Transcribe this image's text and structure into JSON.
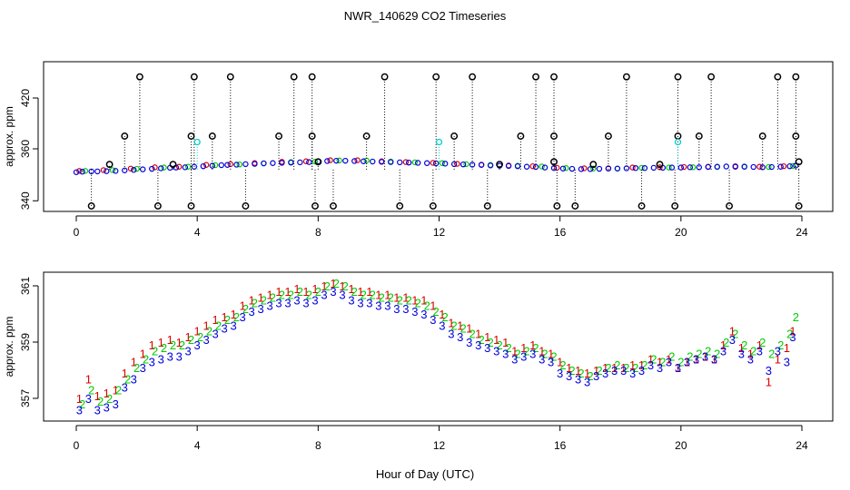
{
  "title": "NWR_140629  CO2 Timeseries",
  "xlabel": "Hour of Day (UTC)",
  "colors": {
    "series_1": "#dd0000",
    "series_2": "#00cc00",
    "series_3": "#0000dd",
    "cyan": "#00cccc",
    "black": "#000000"
  },
  "chart_data": [
    {
      "type": "scatter",
      "title": "NWR_140629  CO2 Timeseries",
      "xlabel": "",
      "ylabel": "approx. ppm",
      "xlim": [
        -1.8,
        25
      ],
      "ylim": [
        335,
        450
      ],
      "xticks": [
        0,
        4,
        8,
        12,
        16,
        20,
        24
      ],
      "yticks": [
        340,
        360,
        420
      ],
      "baseline_ppm": 352,
      "series": [
        {
          "name": "1",
          "color": "#dd0000",
          "x": [
            0.1,
            0.9,
            1.8,
            2.6,
            3.4,
            4.3,
            5.1,
            5.9,
            6.8,
            7.6,
            8.4,
            9.3,
            10.1,
            10.9,
            11.8,
            12.6,
            13.4,
            14.3,
            15.1,
            15.9,
            16.8,
            17.6,
            18.4,
            19.3,
            20.1,
            20.9,
            21.8,
            22.6,
            23.4
          ],
          "y": [
            351.5,
            351.8,
            352.4,
            352.9,
            353.1,
            353.8,
            354.1,
            354.5,
            355.0,
            355.2,
            355.6,
            355.6,
            355.2,
            354.9,
            354.6,
            354.2,
            353.9,
            353.6,
            353.3,
            352.7,
            352.5,
            352.5,
            352.8,
            352.9,
            353.0,
            353.1,
            353.3,
            353.1,
            353.3
          ]
        },
        {
          "name": "2",
          "color": "#00cc00",
          "x": [
            0.3,
            1.2,
            2.0,
            2.9,
            3.7,
            4.6,
            5.4,
            6.2,
            7.1,
            7.9,
            8.7,
            9.6,
            10.4,
            11.2,
            12.1,
            12.9,
            13.7,
            14.6,
            15.4,
            16.2,
            17.1,
            17.9,
            18.7,
            19.6,
            20.4,
            21.2,
            22.1,
            22.9,
            23.7
          ],
          "y": [
            351.5,
            351.8,
            352.3,
            352.8,
            353.1,
            353.7,
            354.0,
            354.4,
            354.9,
            355.1,
            355.5,
            355.5,
            355.1,
            354.8,
            354.5,
            354.1,
            353.8,
            353.5,
            353.2,
            352.6,
            352.4,
            352.4,
            352.7,
            352.8,
            352.9,
            353.0,
            353.2,
            353.0,
            353.4
          ]
        },
        {
          "name": "3",
          "color": "#0000dd",
          "x": [
            0.0,
            0.2,
            0.5,
            0.7,
            1.0,
            1.3,
            1.6,
            1.9,
            2.2,
            2.5,
            2.8,
            3.1,
            3.3,
            3.6,
            3.9,
            4.2,
            4.5,
            4.8,
            5.0,
            5.3,
            5.6,
            5.9,
            6.2,
            6.5,
            6.8,
            7.1,
            7.4,
            7.7,
            8.0,
            8.3,
            8.6,
            8.9,
            9.2,
            9.5,
            9.8,
            10.1,
            10.4,
            10.7,
            11.0,
            11.3,
            11.6,
            11.9,
            12.2,
            12.5,
            12.8,
            13.1,
            13.4,
            13.7,
            14.0,
            14.3,
            14.6,
            14.9,
            15.2,
            15.5,
            15.8,
            16.1,
            16.4,
            16.7,
            17.0,
            17.3,
            17.6,
            17.9,
            18.2,
            18.5,
            18.8,
            19.1,
            19.4,
            19.7,
            20.0,
            20.3,
            20.6,
            20.9,
            21.2,
            21.5,
            21.8,
            22.1,
            22.4,
            22.7,
            23.0,
            23.3,
            23.6,
            23.8
          ],
          "y": [
            351.0,
            351.2,
            351.3,
            351.3,
            351.4,
            351.5,
            351.7,
            351.9,
            352.1,
            352.3,
            352.5,
            352.7,
            352.8,
            352.9,
            353.1,
            353.3,
            353.5,
            353.7,
            353.8,
            353.9,
            354.1,
            354.2,
            354.4,
            354.5,
            354.6,
            354.7,
            354.8,
            354.9,
            355.1,
            355.3,
            355.4,
            355.4,
            355.3,
            355.2,
            355.1,
            355.0,
            354.9,
            354.8,
            354.7,
            354.6,
            354.5,
            354.4,
            354.3,
            354.1,
            354.0,
            353.9,
            353.8,
            353.6,
            353.5,
            353.4,
            353.3,
            353.1,
            353.0,
            352.8,
            352.6,
            352.4,
            352.3,
            352.2,
            352.2,
            352.3,
            352.4,
            352.4,
            352.5,
            352.6,
            352.6,
            352.7,
            352.7,
            352.8,
            352.8,
            352.9,
            352.9,
            353.0,
            353.1,
            353.2,
            353.1,
            353.1,
            353.0,
            352.9,
            353.0,
            353.1,
            353.3,
            353.6
          ]
        },
        {
          "name": "spikes",
          "color": "#000000",
          "x": [
            2.1,
            3.9,
            5.1,
            7.2,
            7.8,
            10.2,
            11.9,
            13.1,
            15.2,
            15.8,
            18.2,
            19.9,
            21.0,
            23.2,
            23.8,
            1.6,
            3.8,
            4.5,
            6.7,
            7.8,
            9.6,
            12.5,
            14.7,
            15.8,
            17.6,
            19.9,
            20.6,
            22.7,
            23.8,
            0.5,
            2.7,
            3.8,
            5.6,
            7.9,
            8.5,
            10.7,
            11.8,
            13.6,
            15.9,
            16.5,
            18.7,
            19.8,
            21.6,
            23.9,
            1.1,
            3.2,
            8.0,
            14.0,
            15.8,
            17.1,
            19.3,
            23.9
          ],
          "y": [
            445,
            445,
            445,
            445,
            445,
            445,
            445,
            445,
            445,
            445,
            445,
            445,
            445,
            445,
            445,
            375,
            375,
            375,
            375,
            375,
            375,
            375,
            375,
            375,
            375,
            375,
            375,
            375,
            375,
            338,
            338,
            338,
            338,
            338,
            338,
            338,
            338,
            338,
            338,
            338,
            338,
            338,
            338,
            338,
            354,
            354,
            355,
            354,
            355,
            354,
            354,
            355
          ]
        },
        {
          "name": "cyan",
          "color": "#00cccc",
          "x": [
            4.0,
            12.0,
            19.9
          ],
          "y": [
            368,
            368,
            368
          ]
        }
      ]
    },
    {
      "type": "scatter",
      "title": "",
      "xlabel": "Hour of Day (UTC)",
      "ylabel": "approx. ppm",
      "xlim": [
        -1.8,
        25
      ],
      "ylim": [
        356.2,
        361.6
      ],
      "xticks": [
        0,
        4,
        8,
        12,
        16,
        20,
        24
      ],
      "yticks": [
        357,
        359,
        361
      ],
      "series": [
        {
          "name": "1",
          "color": "#dd0000",
          "x": [
            0.1,
            0.4,
            0.7,
            1.0,
            1.3,
            1.6,
            1.9,
            2.2,
            2.5,
            2.8,
            3.1,
            3.4,
            3.7,
            4.0,
            4.3,
            4.6,
            4.9,
            5.2,
            5.5,
            5.8,
            6.1,
            6.4,
            6.7,
            7.0,
            7.3,
            7.6,
            7.9,
            8.2,
            8.5,
            8.8,
            9.1,
            9.4,
            9.7,
            10.0,
            10.3,
            10.6,
            10.9,
            11.2,
            11.5,
            11.8,
            12.1,
            12.4,
            12.7,
            13.0,
            13.3,
            13.6,
            13.9,
            14.2,
            14.5,
            14.8,
            15.1,
            15.4,
            15.7,
            16.0,
            16.3,
            16.6,
            16.9,
            17.2,
            17.5,
            17.8,
            18.1,
            18.4,
            18.7,
            19.0,
            19.3,
            19.6,
            19.9,
            20.2,
            20.5,
            20.8,
            21.1,
            21.4,
            21.7,
            22.0,
            22.3,
            22.6,
            22.9,
            23.2,
            23.5,
            23.7
          ],
          "y": [
            357.0,
            357.7,
            357.1,
            357.2,
            357.3,
            357.9,
            358.3,
            358.6,
            358.9,
            359.0,
            359.1,
            359.0,
            359.2,
            359.4,
            359.6,
            359.8,
            359.9,
            360.0,
            360.3,
            360.5,
            360.6,
            360.7,
            360.8,
            360.8,
            360.9,
            360.8,
            360.9,
            361.0,
            361.1,
            361.0,
            360.9,
            360.8,
            360.8,
            360.7,
            360.7,
            360.6,
            360.6,
            360.5,
            360.5,
            360.3,
            360.0,
            359.7,
            359.6,
            359.5,
            359.3,
            359.2,
            359.1,
            359.0,
            358.7,
            358.8,
            358.9,
            358.7,
            358.6,
            358.3,
            358.1,
            358.0,
            357.9,
            358.0,
            358.1,
            358.1,
            358.1,
            358.2,
            358.2,
            358.4,
            358.3,
            358.4,
            358.1,
            358.3,
            358.4,
            358.5,
            358.4,
            358.9,
            359.4,
            358.8,
            358.6,
            358.9,
            357.6,
            358.4,
            358.8,
            359.4
          ]
        },
        {
          "name": "2",
          "color": "#00cc00",
          "x": [
            0.2,
            0.5,
            0.8,
            1.1,
            1.4,
            1.7,
            2.0,
            2.3,
            2.6,
            2.9,
            3.2,
            3.5,
            3.8,
            4.1,
            4.4,
            4.7,
            5.0,
            5.3,
            5.6,
            5.9,
            6.2,
            6.5,
            6.8,
            7.1,
            7.4,
            7.7,
            8.0,
            8.3,
            8.6,
            8.9,
            9.2,
            9.5,
            9.8,
            10.1,
            10.4,
            10.7,
            11.0,
            11.3,
            11.6,
            11.9,
            12.2,
            12.5,
            12.8,
            13.1,
            13.4,
            13.7,
            14.0,
            14.3,
            14.6,
            14.9,
            15.2,
            15.5,
            15.8,
            16.1,
            16.4,
            16.7,
            17.0,
            17.3,
            17.6,
            17.9,
            18.2,
            18.5,
            18.8,
            19.1,
            19.4,
            19.7,
            20.0,
            20.3,
            20.6,
            20.9,
            21.2,
            21.5,
            21.8,
            22.1,
            22.4,
            22.7,
            23.0,
            23.3,
            23.6,
            23.8
          ],
          "y": [
            356.8,
            357.3,
            356.9,
            357.0,
            357.3,
            357.7,
            358.1,
            358.4,
            358.7,
            358.8,
            358.9,
            358.9,
            359.1,
            359.2,
            359.4,
            359.6,
            359.8,
            359.9,
            360.2,
            360.4,
            360.5,
            360.6,
            360.7,
            360.7,
            360.8,
            360.7,
            360.8,
            361.0,
            361.1,
            361.0,
            360.8,
            360.7,
            360.7,
            360.6,
            360.6,
            360.5,
            360.5,
            360.4,
            360.3,
            360.1,
            359.9,
            359.6,
            359.5,
            359.3,
            359.1,
            359.0,
            358.9,
            358.8,
            358.6,
            358.7,
            358.8,
            358.6,
            358.5,
            358.2,
            358.0,
            357.9,
            357.8,
            358.0,
            358.1,
            358.2,
            358.1,
            358.1,
            358.2,
            358.4,
            358.3,
            358.5,
            358.3,
            358.5,
            358.6,
            358.7,
            358.6,
            359.0,
            359.3,
            358.9,
            358.7,
            359.0,
            358.6,
            358.9,
            359.3,
            359.9
          ]
        },
        {
          "name": "3",
          "color": "#0000dd",
          "x": [
            0.1,
            0.4,
            0.7,
            1.0,
            1.3,
            1.6,
            1.9,
            2.2,
            2.5,
            2.8,
            3.1,
            3.4,
            3.7,
            4.0,
            4.3,
            4.6,
            4.9,
            5.2,
            5.5,
            5.8,
            6.1,
            6.4,
            6.7,
            7.0,
            7.3,
            7.6,
            7.9,
            8.2,
            8.5,
            8.8,
            9.1,
            9.4,
            9.7,
            10.0,
            10.3,
            10.6,
            10.9,
            11.2,
            11.5,
            11.8,
            12.1,
            12.4,
            12.7,
            13.0,
            13.3,
            13.6,
            13.9,
            14.2,
            14.5,
            14.8,
            15.1,
            15.4,
            15.7,
            16.0,
            16.3,
            16.6,
            16.9,
            17.2,
            17.5,
            17.8,
            18.1,
            18.4,
            18.7,
            19.0,
            19.3,
            19.6,
            19.9,
            20.2,
            20.5,
            20.8,
            21.1,
            21.4,
            21.7,
            22.0,
            22.3,
            22.6,
            22.9,
            23.2,
            23.5,
            23.7
          ],
          "y": [
            356.6,
            357.0,
            356.6,
            356.7,
            356.8,
            357.4,
            357.7,
            358.1,
            358.3,
            358.4,
            358.5,
            358.5,
            358.7,
            358.9,
            359.1,
            359.3,
            359.5,
            359.6,
            359.9,
            360.1,
            360.2,
            360.3,
            360.4,
            360.4,
            360.5,
            360.4,
            360.5,
            360.7,
            360.8,
            360.7,
            360.5,
            360.4,
            360.4,
            360.3,
            360.3,
            360.2,
            360.2,
            360.1,
            360.0,
            359.8,
            359.6,
            359.3,
            359.2,
            359.0,
            358.9,
            358.8,
            358.7,
            358.6,
            358.4,
            358.5,
            358.6,
            358.4,
            358.3,
            357.9,
            357.8,
            357.7,
            357.6,
            357.8,
            357.9,
            358.0,
            358.0,
            357.9,
            358.0,
            358.2,
            358.1,
            358.3,
            358.1,
            358.3,
            358.4,
            358.5,
            358.4,
            358.7,
            359.1,
            358.6,
            358.4,
            358.7,
            358.0,
            358.7,
            358.3,
            359.2
          ]
        }
      ]
    }
  ]
}
